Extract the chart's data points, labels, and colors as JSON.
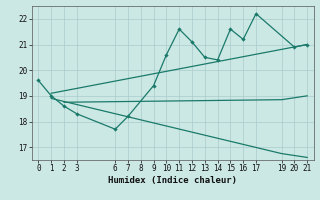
{
  "bg_color": "#cce8e4",
  "grid_color": "#aacccc",
  "line_color": "#1a7a6a",
  "xlabel": "Humidex (Indice chaleur)",
  "ylim": [
    16.5,
    22.5
  ],
  "xlim": [
    -0.5,
    21.5
  ],
  "yticks": [
    17,
    18,
    19,
    20,
    21,
    22
  ],
  "xticks": [
    0,
    1,
    2,
    3,
    6,
    7,
    8,
    9,
    10,
    11,
    12,
    13,
    14,
    15,
    16,
    17,
    19,
    20,
    21
  ],
  "series1_x": [
    0,
    1,
    2,
    3,
    6,
    7,
    9,
    10,
    11,
    12,
    13,
    14,
    15,
    16,
    17,
    20,
    21
  ],
  "series1_y": [
    19.6,
    19.0,
    18.6,
    18.3,
    17.7,
    18.2,
    19.4,
    20.6,
    21.6,
    21.1,
    20.5,
    20.4,
    21.6,
    21.2,
    22.2,
    20.9,
    21.0
  ],
  "series2_x": [
    1,
    21
  ],
  "series2_y": [
    19.1,
    21.0
  ],
  "series3_x": [
    2,
    19,
    21
  ],
  "series3_y": [
    18.75,
    18.85,
    19.0
  ],
  "series4_x": [
    1,
    19,
    21
  ],
  "series4_y": [
    18.9,
    16.75,
    16.6
  ]
}
